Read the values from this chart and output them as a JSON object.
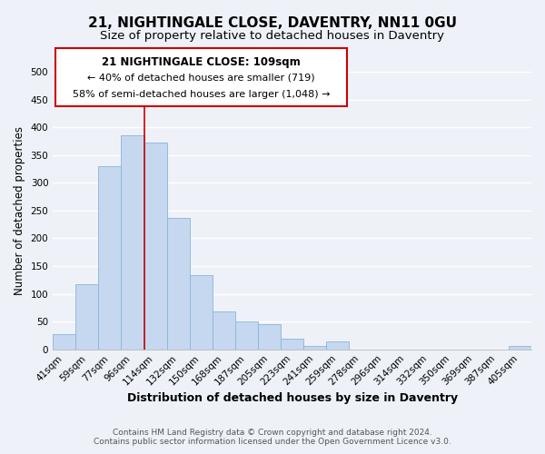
{
  "title": "21, NIGHTINGALE CLOSE, DAVENTRY, NN11 0GU",
  "subtitle": "Size of property relative to detached houses in Daventry",
  "xlabel": "Distribution of detached houses by size in Daventry",
  "ylabel": "Number of detached properties",
  "bar_color": "#c5d8f0",
  "bar_edge_color": "#8ab4d8",
  "categories": [
    "41sqm",
    "59sqm",
    "77sqm",
    "96sqm",
    "114sqm",
    "132sqm",
    "150sqm",
    "168sqm",
    "187sqm",
    "205sqm",
    "223sqm",
    "241sqm",
    "259sqm",
    "278sqm",
    "296sqm",
    "314sqm",
    "332sqm",
    "350sqm",
    "369sqm",
    "387sqm",
    "405sqm"
  ],
  "values": [
    28,
    117,
    330,
    385,
    373,
    237,
    133,
    68,
    50,
    46,
    19,
    6,
    14,
    0,
    0,
    0,
    0,
    0,
    0,
    0,
    6
  ],
  "ylim": [
    0,
    500
  ],
  "yticks": [
    0,
    50,
    100,
    150,
    200,
    250,
    300,
    350,
    400,
    450,
    500
  ],
  "vline_index": 4,
  "vline_color": "#cc0000",
  "annotation_title": "21 NIGHTINGALE CLOSE: 109sqm",
  "annotation_line1": "← 40% of detached houses are smaller (719)",
  "annotation_line2": "58% of semi-detached houses are larger (1,048) →",
  "annotation_box_facecolor": "#ffffff",
  "annotation_box_edgecolor": "#cc0000",
  "footer_line1": "Contains HM Land Registry data © Crown copyright and database right 2024.",
  "footer_line2": "Contains public sector information licensed under the Open Government Licence v3.0.",
  "background_color": "#eef2f8",
  "plot_bg_color": "#eef2f8",
  "grid_color": "#ffffff",
  "title_fontsize": 11,
  "subtitle_fontsize": 9.5,
  "xlabel_fontsize": 9,
  "ylabel_fontsize": 8.5,
  "tick_fontsize": 7.5,
  "annotation_title_fontsize": 8.5,
  "annotation_text_fontsize": 8,
  "footer_fontsize": 6.5
}
